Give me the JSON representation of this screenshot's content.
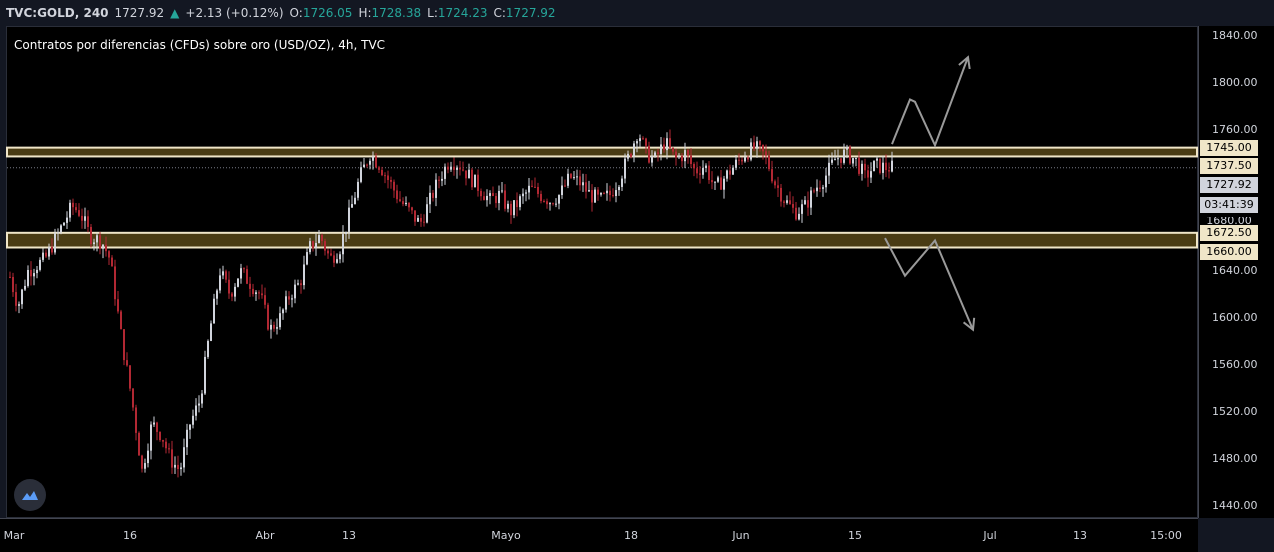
{
  "header": {
    "symbol": "TVC:GOLD, 240",
    "last": "1727.92",
    "change_arrow": "▲",
    "change": "+2.13 (+0.12%)",
    "o_label": "O:",
    "o_value": "1726.05",
    "h_label": "H:",
    "h_value": "1728.38",
    "l_label": "L:",
    "l_value": "1724.23",
    "c_label": "C:",
    "c_value": "1727.92"
  },
  "chart_title": "Contratos por diferencias (CFDs) sobre oro (USD/OZ), 4h, TVC",
  "price_axis": {
    "ticks": [
      "1840.00",
      "1800.00",
      "1760.00",
      "1640.00",
      "1600.00",
      "1560.00",
      "1520.00",
      "1480.00",
      "1440.00"
    ],
    "partial_tick": "1680.00"
  },
  "badges": {
    "upper_top": "1745.00",
    "upper_bottom": "1737.50",
    "current": "1727.92",
    "countdown": "03:41:39",
    "lower_top": "1672.50",
    "lower_bottom": "1660.00"
  },
  "time_axis": [
    "Mar",
    "16",
    "Abr",
    "13",
    "Mayo",
    "18",
    "Jun",
    "15",
    "Jul",
    "13",
    "15:00"
  ],
  "colors": {
    "up": "#d1d4dc",
    "down": "#b22833",
    "zone": "#4a3c14",
    "zone_edge": "#f0e6c8",
    "accent": "#26a69a"
  },
  "icons": {
    "logo": "tradingview-cloud-icon"
  },
  "chart_data": {
    "type": "candlestick",
    "title": "Contratos por diferencias (CFDs) sobre oro (USD/OZ), 4h, TVC",
    "x_range": [
      "Mar",
      "Jul"
    ],
    "ylim": [
      1430,
      1850
    ],
    "resistance_zone": [
      1737.5,
      1745.0
    ],
    "support_zone": [
      1660.0,
      1672.5
    ],
    "last_price": 1727.92,
    "price_path": [
      [
        0,
        1635
      ],
      [
        8,
        1610
      ],
      [
        18,
        1640
      ],
      [
        35,
        1650
      ],
      [
        50,
        1675
      ],
      [
        62,
        1695
      ],
      [
        70,
        1690
      ],
      [
        80,
        1670
      ],
      [
        92,
        1665
      ],
      [
        100,
        1650
      ],
      [
        112,
        1580
      ],
      [
        122,
        1530
      ],
      [
        132,
        1470
      ],
      [
        142,
        1510
      ],
      [
        152,
        1500
      ],
      [
        160,
        1480
      ],
      [
        170,
        1470
      ],
      [
        180,
        1510
      ],
      [
        190,
        1530
      ],
      [
        200,
        1590
      ],
      [
        210,
        1640
      ],
      [
        220,
        1620
      ],
      [
        230,
        1640
      ],
      [
        240,
        1630
      ],
      [
        250,
        1620
      ],
      [
        260,
        1590
      ],
      [
        270,
        1600
      ],
      [
        280,
        1620
      ],
      [
        290,
        1630
      ],
      [
        300,
        1660
      ],
      [
        310,
        1670
      ],
      [
        320,
        1650
      ],
      [
        330,
        1660
      ],
      [
        340,
        1690
      ],
      [
        350,
        1720
      ],
      [
        360,
        1740
      ],
      [
        370,
        1730
      ],
      [
        380,
        1715
      ],
      [
        390,
        1700
      ],
      [
        400,
        1690
      ],
      [
        410,
        1680
      ],
      [
        420,
        1700
      ],
      [
        430,
        1720
      ],
      [
        440,
        1735
      ],
      [
        450,
        1730
      ],
      [
        460,
        1720
      ],
      [
        470,
        1710
      ],
      [
        480,
        1700
      ],
      [
        490,
        1705
      ],
      [
        500,
        1690
      ],
      [
        510,
        1700
      ],
      [
        520,
        1710
      ],
      [
        530,
        1705
      ],
      [
        540,
        1700
      ],
      [
        550,
        1705
      ],
      [
        560,
        1720
      ],
      [
        570,
        1715
      ],
      [
        580,
        1705
      ],
      [
        590,
        1700
      ],
      [
        600,
        1705
      ],
      [
        610,
        1720
      ],
      [
        620,
        1740
      ],
      [
        628,
        1760
      ],
      [
        636,
        1740
      ],
      [
        645,
        1735
      ],
      [
        655,
        1750
      ],
      [
        665,
        1735
      ],
      [
        675,
        1740
      ],
      [
        685,
        1725
      ],
      [
        695,
        1730
      ],
      [
        705,
        1710
      ],
      [
        715,
        1720
      ],
      [
        725,
        1730
      ],
      [
        735,
        1740
      ],
      [
        745,
        1745
      ],
      [
        755,
        1738
      ],
      [
        765,
        1715
      ],
      [
        775,
        1700
      ],
      [
        785,
        1690
      ],
      [
        795,
        1695
      ],
      [
        805,
        1710
      ],
      [
        815,
        1720
      ],
      [
        825,
        1735
      ],
      [
        835,
        1740
      ],
      [
        845,
        1735
      ],
      [
        855,
        1720
      ],
      [
        865,
        1730
      ],
      [
        875,
        1728
      ],
      [
        882,
        1728
      ]
    ],
    "projections": {
      "up": [
        [
          892,
          1748
        ],
        [
          910,
          1786
        ],
        [
          915,
          1784
        ],
        [
          935,
          1747
        ],
        [
          968,
          1822
        ]
      ],
      "down": [
        [
          885,
          1668
        ],
        [
          905,
          1636
        ],
        [
          935,
          1666
        ],
        [
          973,
          1590
        ]
      ]
    }
  }
}
